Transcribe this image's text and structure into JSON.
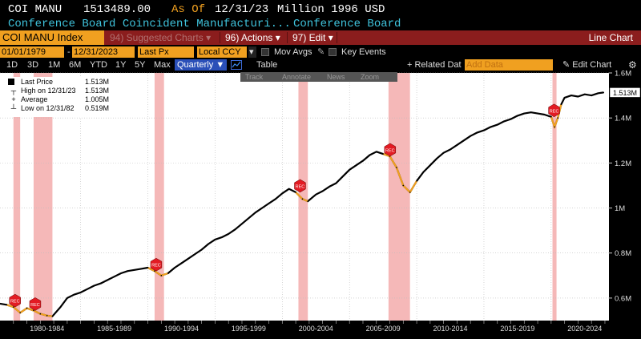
{
  "header": {
    "ticker": "COI MANU",
    "value": "1513489.00",
    "as_of_label": "As Of",
    "as_of_date": "12/31/23",
    "units": "Million 1996 USD",
    "description": "Conference Board Coincident Manufacturi...",
    "source": "Conference Board"
  },
  "function_bar": {
    "security": "COI MANU Index",
    "suggested": "94) Suggested Charts",
    "suggested_arrow": "▾",
    "actions": "96) Actions",
    "actions_arrow": "▾",
    "edit": "97) Edit",
    "edit_arrow": "▾",
    "chart_type": "Line Chart"
  },
  "date_row": {
    "start_date": "01/01/1979",
    "end_date": "12/31/2023",
    "field": "Last Px",
    "currency": "Local CCY",
    "mov_avgs": "Mov Avgs",
    "key_events": "Key Events"
  },
  "toolbar": {
    "periods": [
      "1D",
      "3D",
      "1M",
      "6M",
      "YTD",
      "1Y",
      "5Y",
      "Max"
    ],
    "frequency": "Quarterly",
    "table": "Table",
    "related": "+ Related Dat",
    "add_data_placeholder": "Add Data",
    "edit_chart": "Edit Chart"
  },
  "zoom_bar": {
    "track": "Track",
    "annotate": "Annotate",
    "news": "News",
    "zoom": "Zoom"
  },
  "legend": {
    "last_price_label": "Last Price",
    "last_price": "1.513M",
    "high_label": "High on 12/31/23",
    "high": "1.513M",
    "average_label": "Average",
    "average": "1.005M",
    "low_label": "Low on 12/31/82",
    "low": "0.519M"
  },
  "last_value_tag": "1.513M",
  "recession_label": "REC",
  "colors": {
    "background": "#000000",
    "line": "#000000",
    "plot_bg": "#ffffff",
    "recession_band": "#f5b8b8",
    "recession_marker": "#e31b23",
    "function_bar": "#8b1d1d",
    "accent_orange": "#f0a020",
    "header_cyan": "#3fc3dc"
  },
  "chart_data": {
    "type": "line",
    "title": "",
    "xlabel": "",
    "ylabel": "",
    "ylim": [
      0.5,
      1.6
    ],
    "y_unit": "M",
    "y_ticks": [
      "0.6M",
      "0.8M",
      "1M",
      "1.2M",
      "1.4M",
      "1.6M"
    ],
    "y_tick_values": [
      0.6,
      0.8,
      1.0,
      1.2,
      1.4,
      1.6
    ],
    "x_tick_labels": [
      "1980-1984",
      "1985-1989",
      "1990-1994",
      "1995-1999",
      "2000-2004",
      "2005-2009",
      "2010-2014",
      "2015-2019",
      "2020-2024"
    ],
    "x_tick_centers": [
      1982.5,
      1987.5,
      1992.5,
      1997.5,
      2002.5,
      2007.5,
      2012.5,
      2017.5,
      2022.5
    ],
    "xlim": [
      1979.0,
      2024.3
    ],
    "grid": true,
    "recessions": [
      {
        "start": 1980.0,
        "end": 1980.5
      },
      {
        "start": 1981.5,
        "end": 1982.9
      },
      {
        "start": 1990.5,
        "end": 1991.2
      },
      {
        "start": 2001.2,
        "end": 2001.9
      },
      {
        "start": 2007.9,
        "end": 2009.5
      },
      {
        "start": 2020.1,
        "end": 2020.4
      }
    ],
    "series": [
      {
        "name": "Last Price",
        "x": [
          1979.0,
          1979.5,
          1980.0,
          1980.5,
          1981.0,
          1981.5,
          1982.0,
          1982.5,
          1982.9,
          1983.5,
          1984.0,
          1984.5,
          1985.0,
          1985.5,
          1986.0,
          1986.5,
          1987.0,
          1987.5,
          1988.0,
          1988.5,
          1989.0,
          1989.5,
          1990.0,
          1990.5,
          1991.0,
          1991.5,
          1992.0,
          1992.5,
          1993.0,
          1993.5,
          1994.0,
          1994.5,
          1995.0,
          1995.5,
          1996.0,
          1996.5,
          1997.0,
          1997.5,
          1998.0,
          1998.5,
          1999.0,
          1999.5,
          2000.0,
          2000.5,
          2001.0,
          2001.5,
          2001.9,
          2002.5,
          2003.0,
          2003.5,
          2004.0,
          2004.5,
          2005.0,
          2005.5,
          2006.0,
          2006.5,
          2007.0,
          2007.5,
          2008.0,
          2008.5,
          2009.0,
          2009.5,
          2010.0,
          2010.5,
          2011.0,
          2011.5,
          2012.0,
          2012.5,
          2013.0,
          2013.5,
          2014.0,
          2014.5,
          2015.0,
          2015.5,
          2016.0,
          2016.5,
          2017.0,
          2017.5,
          2018.0,
          2018.5,
          2019.0,
          2019.5,
          2020.0,
          2020.25,
          2020.5,
          2020.75,
          2021.0,
          2021.5,
          2022.0,
          2022.5,
          2023.0,
          2023.5,
          2023.9
        ],
        "values": [
          0.575,
          0.57,
          0.56,
          0.535,
          0.555,
          0.545,
          0.53,
          0.522,
          0.519,
          0.56,
          0.6,
          0.615,
          0.625,
          0.64,
          0.655,
          0.665,
          0.68,
          0.695,
          0.71,
          0.72,
          0.725,
          0.73,
          0.735,
          0.72,
          0.7,
          0.71,
          0.735,
          0.755,
          0.775,
          0.795,
          0.815,
          0.84,
          0.86,
          0.87,
          0.885,
          0.905,
          0.93,
          0.955,
          0.98,
          1.0,
          1.02,
          1.04,
          1.065,
          1.085,
          1.07,
          1.04,
          1.03,
          1.06,
          1.075,
          1.095,
          1.11,
          1.14,
          1.17,
          1.19,
          1.21,
          1.235,
          1.25,
          1.24,
          1.23,
          1.18,
          1.1,
          1.07,
          1.12,
          1.16,
          1.19,
          1.22,
          1.245,
          1.26,
          1.28,
          1.3,
          1.32,
          1.335,
          1.345,
          1.36,
          1.37,
          1.385,
          1.395,
          1.41,
          1.42,
          1.425,
          1.42,
          1.415,
          1.405,
          1.36,
          1.4,
          1.46,
          1.49,
          1.5,
          1.495,
          1.505,
          1.5,
          1.51,
          1.513
        ]
      }
    ]
  }
}
